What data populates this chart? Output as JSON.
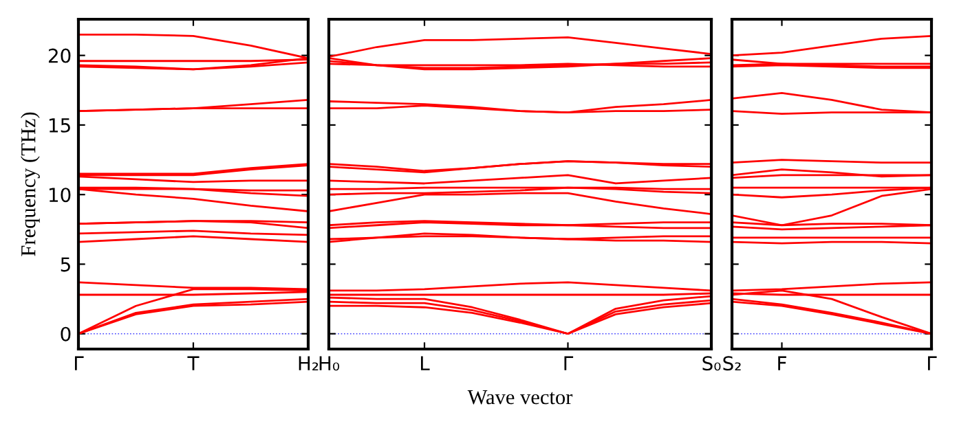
{
  "chart_data": [
    {
      "type": "line",
      "ylabel": "Frequency (THz)",
      "categories": [
        "Γ",
        null,
        "T",
        null,
        "H₂"
      ],
      "ylim": [
        -1.1,
        22.6
      ],
      "yticks": [
        0,
        5,
        10,
        15,
        20
      ],
      "ref_lines": [
        {
          "axis": "y",
          "value": 0,
          "color": "#4040ff",
          "line_style": "dotted"
        }
      ],
      "series": [
        {
          "color": "#ff0000",
          "values": [
            0,
            1.4,
            2.0,
            2.1,
            2.3
          ]
        },
        {
          "color": "#ff0000",
          "values": [
            0,
            1.5,
            2.1,
            2.3,
            2.5
          ]
        },
        {
          "color": "#ff0000",
          "values": [
            0,
            2.0,
            3.2,
            3.2,
            3.1
          ]
        },
        {
          "color": "#ff0000",
          "values": [
            2.8,
            2.8,
            2.8,
            2.9,
            3.0
          ]
        },
        {
          "color": "#ff0000",
          "values": [
            3.7,
            3.5,
            3.3,
            3.3,
            3.2
          ]
        },
        {
          "color": "#ff0000",
          "values": [
            6.6,
            6.8,
            7.0,
            6.8,
            6.6
          ]
        },
        {
          "color": "#ff0000",
          "values": [
            7.2,
            7.3,
            7.4,
            7.2,
            7.1
          ]
        },
        {
          "color": "#ff0000",
          "values": [
            7.9,
            8.0,
            8.1,
            8.0,
            7.6
          ]
        },
        {
          "color": "#ff0000",
          "values": [
            7.9,
            8.0,
            8.1,
            8.1,
            8.0
          ]
        },
        {
          "color": "#ff0000",
          "values": [
            10.4,
            10.0,
            9.7,
            9.2,
            8.8
          ]
        },
        {
          "color": "#ff0000",
          "values": [
            10.4,
            10.4,
            10.4,
            10.1,
            9.9
          ]
        },
        {
          "color": "#ff0000",
          "values": [
            10.5,
            10.5,
            10.4,
            10.3,
            10.3
          ]
        },
        {
          "color": "#ff0000",
          "values": [
            11.3,
            11.1,
            10.9,
            11.0,
            11.0
          ]
        },
        {
          "color": "#ff0000",
          "values": [
            11.4,
            11.4,
            11.4,
            11.8,
            12.1
          ]
        },
        {
          "color": "#ff0000",
          "values": [
            11.5,
            11.5,
            11.5,
            11.9,
            12.2
          ]
        },
        {
          "color": "#ff0000",
          "values": [
            16.0,
            16.1,
            16.2,
            16.2,
            16.2
          ]
        },
        {
          "color": "#ff0000",
          "values": [
            16.0,
            16.1,
            16.2,
            16.5,
            16.8
          ]
        },
        {
          "color": "#ff0000",
          "values": [
            21.5,
            21.5,
            21.4,
            20.7,
            19.8
          ]
        },
        {
          "color": "#ff0000",
          "values": [
            19.6,
            19.6,
            19.6,
            19.6,
            19.7
          ]
        },
        {
          "color": "#ff0000",
          "values": [
            19.3,
            19.2,
            19.0,
            19.2,
            19.5
          ]
        },
        {
          "color": "#ff0000",
          "values": [
            19.2,
            19.1,
            19.0,
            19.3,
            19.8
          ]
        }
      ]
    },
    {
      "type": "line",
      "xlabel": "Wave vector",
      "categories": [
        "H₀",
        null,
        "L",
        null,
        null,
        "Γ",
        null,
        null,
        "S₀"
      ],
      "ylim": [
        -1.1,
        22.6
      ],
      "yticks": [
        0,
        5,
        10,
        15,
        20
      ],
      "ref_lines": [
        {
          "axis": "y",
          "value": 0,
          "color": "#4040ff",
          "line_style": "dotted"
        }
      ],
      "series": [
        {
          "color": "#ff0000",
          "values": [
            2.0,
            2.0,
            1.9,
            1.5,
            0.8,
            0,
            1.4,
            1.9,
            2.2
          ]
        },
        {
          "color": "#ff0000",
          "values": [
            2.3,
            2.2,
            2.2,
            1.7,
            0.9,
            0,
            1.6,
            2.1,
            2.4
          ]
        },
        {
          "color": "#ff0000",
          "values": [
            2.6,
            2.5,
            2.5,
            1.9,
            1.0,
            0,
            1.8,
            2.4,
            2.7
          ]
        },
        {
          "color": "#ff0000",
          "values": [
            2.8,
            2.8,
            2.8,
            2.8,
            2.8,
            2.8,
            2.8,
            2.8,
            2.9
          ]
        },
        {
          "color": "#ff0000",
          "values": [
            3.1,
            3.1,
            3.2,
            3.4,
            3.6,
            3.7,
            3.5,
            3.3,
            3.1
          ]
        },
        {
          "color": "#ff0000",
          "values": [
            6.6,
            6.9,
            7.2,
            7.1,
            6.9,
            6.8,
            6.7,
            6.7,
            6.6
          ]
        },
        {
          "color": "#ff0000",
          "values": [
            6.8,
            6.9,
            7.0,
            7.0,
            6.9,
            6.8,
            6.9,
            7.0,
            7.0
          ]
        },
        {
          "color": "#ff0000",
          "values": [
            7.8,
            8.0,
            8.1,
            8.0,
            7.9,
            7.8,
            7.9,
            8.0,
            8.0
          ]
        },
        {
          "color": "#ff0000",
          "values": [
            7.6,
            7.8,
            8.0,
            7.9,
            7.8,
            7.8,
            7.7,
            7.6,
            7.6
          ]
        },
        {
          "color": "#ff0000",
          "values": [
            8.8,
            9.4,
            10.0,
            10.0,
            10.1,
            10.1,
            9.5,
            9.0,
            8.6
          ]
        },
        {
          "color": "#ff0000",
          "values": [
            10.0,
            10.1,
            10.1,
            10.2,
            10.3,
            10.5,
            10.4,
            10.2,
            10.1
          ]
        },
        {
          "color": "#ff0000",
          "values": [
            10.4,
            10.4,
            10.5,
            10.5,
            10.5,
            10.5,
            10.5,
            10.4,
            10.4
          ]
        },
        {
          "color": "#ff0000",
          "values": [
            11.0,
            10.9,
            10.8,
            11.0,
            11.2,
            11.4,
            10.8,
            11.0,
            11.2
          ]
        },
        {
          "color": "#ff0000",
          "values": [
            12.0,
            11.8,
            11.6,
            11.9,
            12.2,
            12.4,
            12.3,
            12.1,
            12.0
          ]
        },
        {
          "color": "#ff0000",
          "values": [
            12.2,
            12.0,
            11.7,
            11.9,
            12.2,
            12.4,
            12.3,
            12.2,
            12.2
          ]
        },
        {
          "color": "#ff0000",
          "values": [
            16.7,
            16.6,
            16.5,
            16.3,
            16.0,
            15.9,
            16.3,
            16.5,
            16.8
          ]
        },
        {
          "color": "#ff0000",
          "values": [
            16.2,
            16.2,
            16.4,
            16.2,
            16.0,
            15.9,
            16.0,
            16.0,
            16.1
          ]
        },
        {
          "color": "#ff0000",
          "values": [
            19.9,
            20.6,
            21.1,
            21.1,
            21.2,
            21.3,
            20.9,
            20.5,
            20.1
          ]
        },
        {
          "color": "#ff0000",
          "values": [
            19.8,
            19.3,
            19.0,
            19.0,
            19.1,
            19.2,
            19.4,
            19.6,
            19.8
          ]
        },
        {
          "color": "#ff0000",
          "values": [
            19.6,
            19.3,
            19.1,
            19.1,
            19.2,
            19.3,
            19.4,
            19.4,
            19.5
          ]
        },
        {
          "color": "#ff0000",
          "values": [
            19.4,
            19.3,
            19.3,
            19.3,
            19.3,
            19.4,
            19.3,
            19.2,
            19.2
          ]
        }
      ],
      "tick_labels": "x"
    },
    {
      "type": "line",
      "categories": [
        "S₂",
        "F",
        null,
        null,
        "Γ"
      ],
      "ylim": [
        -1.1,
        22.6
      ],
      "yticks": [
        0,
        5,
        10,
        15,
        20
      ],
      "ref_lines": [
        {
          "axis": "y",
          "value": 0,
          "color": "#4040ff",
          "line_style": "dotted"
        }
      ],
      "series": [
        {
          "color": "#ff0000",
          "values": [
            2.3,
            2.0,
            1.4,
            0.7,
            0
          ]
        },
        {
          "color": "#ff0000",
          "values": [
            2.5,
            2.1,
            1.5,
            0.8,
            0
          ]
        },
        {
          "color": "#ff0000",
          "values": [
            2.8,
            3.1,
            2.5,
            1.2,
            0
          ]
        },
        {
          "color": "#ff0000",
          "values": [
            2.9,
            2.8,
            2.8,
            2.8,
            2.8
          ]
        },
        {
          "color": "#ff0000",
          "values": [
            3.1,
            3.2,
            3.4,
            3.6,
            3.7
          ]
        },
        {
          "color": "#ff0000",
          "values": [
            6.6,
            6.5,
            6.6,
            6.6,
            6.5
          ]
        },
        {
          "color": "#ff0000",
          "values": [
            6.9,
            6.9,
            6.9,
            6.9,
            6.9
          ]
        },
        {
          "color": "#ff0000",
          "values": [
            7.7,
            7.5,
            7.6,
            7.7,
            7.8
          ]
        },
        {
          "color": "#ff0000",
          "values": [
            8.0,
            7.8,
            7.9,
            7.9,
            7.8
          ]
        },
        {
          "color": "#ff0000",
          "values": [
            8.5,
            7.8,
            8.5,
            9.9,
            10.4
          ]
        },
        {
          "color": "#ff0000",
          "values": [
            10.0,
            9.8,
            10.0,
            10.3,
            10.5
          ]
        },
        {
          "color": "#ff0000",
          "values": [
            10.5,
            10.5,
            10.5,
            10.5,
            10.5
          ]
        },
        {
          "color": "#ff0000",
          "values": [
            11.4,
            11.8,
            11.6,
            11.3,
            11.4
          ]
        },
        {
          "color": "#ff0000",
          "values": [
            11.2,
            11.4,
            11.4,
            11.4,
            11.4
          ]
        },
        {
          "color": "#ff0000",
          "values": [
            12.3,
            12.5,
            12.4,
            12.3,
            12.3
          ]
        },
        {
          "color": "#ff0000",
          "values": [
            16.9,
            17.3,
            16.8,
            16.1,
            15.9
          ]
        },
        {
          "color": "#ff0000",
          "values": [
            16.0,
            15.8,
            15.9,
            15.9,
            15.9
          ]
        },
        {
          "color": "#ff0000",
          "values": [
            20.0,
            20.2,
            20.7,
            21.2,
            21.4
          ]
        },
        {
          "color": "#ff0000",
          "values": [
            19.7,
            19.4,
            19.4,
            19.4,
            19.4
          ]
        },
        {
          "color": "#ff0000",
          "values": [
            19.3,
            19.4,
            19.3,
            19.2,
            19.2
          ]
        },
        {
          "color": "#ff0000",
          "values": [
            19.2,
            19.3,
            19.2,
            19.1,
            19.1
          ]
        }
      ],
      "tick_labels": "x"
    }
  ]
}
